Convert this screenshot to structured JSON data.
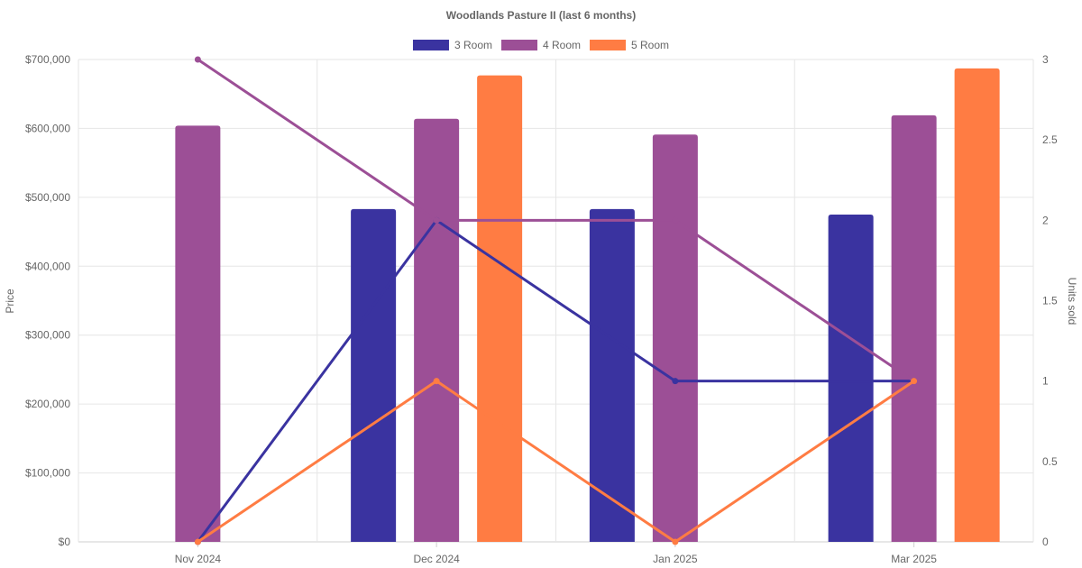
{
  "chart_data": {
    "type": "bar",
    "title": "Woodlands Pasture II (last 6 months)",
    "categories": [
      "Nov 2024",
      "Dec 2024",
      "Jan 2025",
      "Mar 2025"
    ],
    "y_left": {
      "label": "Price",
      "min": 0,
      "max": 700000,
      "step": 100000,
      "ticks": [
        "$0",
        "$100,000",
        "$200,000",
        "$300,000",
        "$400,000",
        "$500,000",
        "$600,000",
        "$700,000"
      ]
    },
    "y_right": {
      "label": "Units sold",
      "min": 0,
      "max": 3,
      "step": 0.5,
      "ticks": [
        "0",
        "0.5",
        "1",
        "1.5",
        "2",
        "2.5",
        "3"
      ]
    },
    "legend_position": "top",
    "grid": true,
    "series": [
      {
        "name": "3 Room",
        "color": "#3a33a0",
        "price": [
          null,
          483000,
          483000,
          475000
        ],
        "units": [
          0,
          2,
          1,
          1
        ]
      },
      {
        "name": "4 Room",
        "color": "#9c4f96",
        "price": [
          604000,
          614000,
          591000,
          619000
        ],
        "units": [
          3,
          2,
          2,
          1
        ]
      },
      {
        "name": "5 Room",
        "color": "#ff7c43",
        "price": [
          null,
          677000,
          null,
          687000
        ],
        "units": [
          0,
          1,
          0,
          1
        ]
      }
    ]
  }
}
